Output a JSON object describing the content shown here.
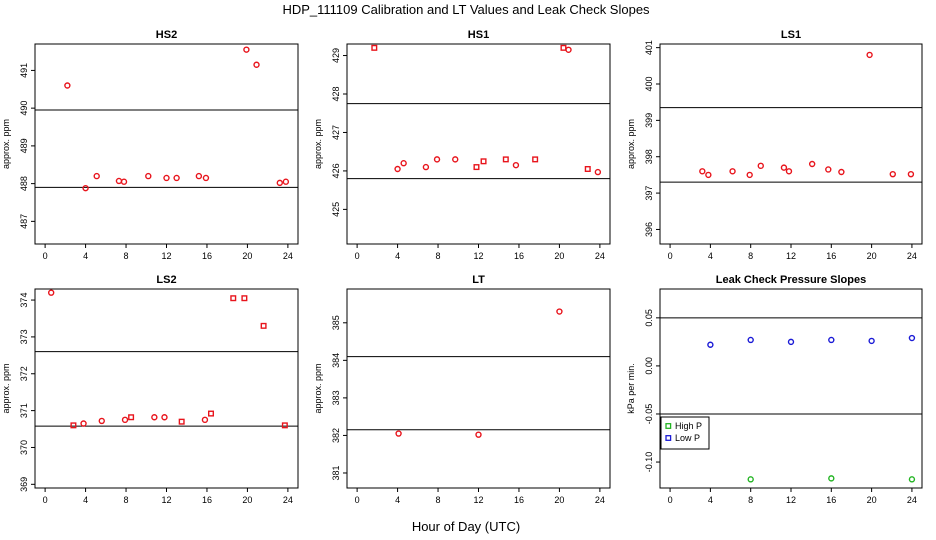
{
  "figure": {
    "title": "HDP_111109  Calibration and LT Values and Leak Check Slopes",
    "xlabel": "Hour of Day (UTC)"
  },
  "colors": {
    "red": "#e8141c",
    "blue": "#1a1ad6",
    "green": "#22b422"
  },
  "chart_data": [
    {
      "type": "scatter",
      "title": "HS2",
      "xlabel": "",
      "ylabel": "approx. ppm",
      "xlim": [
        -1,
        25
      ],
      "ylim": [
        486.4,
        491.7
      ],
      "xticks": [
        0,
        4,
        8,
        12,
        16,
        20,
        24
      ],
      "xtick_labels": [
        "0",
        "4",
        "8",
        "12",
        "16",
        "20",
        "24"
      ],
      "yticks": [
        487,
        488,
        489,
        490,
        491
      ],
      "ytick_labels": [
        "487",
        "488",
        "489",
        "490",
        "491"
      ],
      "hlines": [
        489.95,
        487.9
      ],
      "series": [
        {
          "marker": "circle",
          "color": "red",
          "x": [
            2.2,
            4,
            5.1,
            7.3,
            7.8,
            10.2,
            12,
            13,
            15.2,
            15.9,
            19.9,
            20.9,
            23.2,
            23.8
          ],
          "y": [
            490.6,
            487.88,
            488.2,
            488.07,
            488.05,
            488.2,
            488.15,
            488.15,
            488.2,
            488.15,
            491.55,
            491.15,
            488.02,
            488.05
          ]
        }
      ]
    },
    {
      "type": "scatter",
      "title": "HS1",
      "xlabel": "",
      "ylabel": "approx. ppm",
      "xlim": [
        -1,
        25
      ],
      "ylim": [
        424.1,
        429.3
      ],
      "xticks": [
        0,
        4,
        8,
        12,
        16,
        20,
        24
      ],
      "xtick_labels": [
        "0",
        "4",
        "8",
        "12",
        "16",
        "20",
        "24"
      ],
      "yticks": [
        425,
        426,
        427,
        428,
        429
      ],
      "ytick_labels": [
        "425",
        "426",
        "427",
        "428",
        "429"
      ],
      "hlines": [
        427.75,
        425.8
      ],
      "series": [
        {
          "marker": "circle",
          "color": "red",
          "x": [
            4,
            4.6,
            6.8,
            7.9,
            9.7,
            15.7,
            20.9,
            23.8
          ],
          "y": [
            426.05,
            426.2,
            426.1,
            426.3,
            426.3,
            426.15,
            429.15,
            425.97
          ]
        },
        {
          "marker": "square",
          "color": "red",
          "x": [
            1.7,
            11.8,
            12.5,
            14.7,
            17.6,
            20.4,
            22.8
          ],
          "y": [
            429.2,
            426.1,
            426.25,
            426.3,
            426.3,
            429.2,
            426.05
          ]
        }
      ]
    },
    {
      "type": "scatter",
      "title": "LS1",
      "xlabel": "",
      "ylabel": "approx. ppm",
      "xlim": [
        -1,
        25
      ],
      "ylim": [
        395.6,
        401.1
      ],
      "xticks": [
        0,
        4,
        8,
        12,
        16,
        20,
        24
      ],
      "xtick_labels": [
        "0",
        "4",
        "8",
        "12",
        "16",
        "20",
        "24"
      ],
      "yticks": [
        396,
        397,
        398,
        399,
        400,
        401
      ],
      "ytick_labels": [
        "396",
        "397",
        "398",
        "399",
        "400",
        "401"
      ],
      "hlines": [
        399.35,
        397.3
      ],
      "series": [
        {
          "marker": "circle",
          "color": "red",
          "x": [
            3.2,
            3.8,
            6.2,
            7.9,
            9,
            11.3,
            11.8,
            14.1,
            15.7,
            17,
            19.8,
            22.1,
            23.9
          ],
          "y": [
            397.6,
            397.5,
            397.6,
            397.5,
            397.75,
            397.7,
            397.6,
            397.8,
            397.65,
            397.58,
            400.8,
            397.52,
            397.52
          ]
        }
      ]
    },
    {
      "type": "scatter",
      "title": "LS2",
      "xlabel": "",
      "ylabel": "approx. ppm",
      "xlim": [
        -1,
        25
      ],
      "ylim": [
        368.9,
        374.3
      ],
      "xticks": [
        0,
        4,
        8,
        12,
        16,
        20,
        24
      ],
      "xtick_labels": [
        "0",
        "4",
        "8",
        "12",
        "16",
        "20",
        "24"
      ],
      "yticks": [
        369,
        370,
        371,
        372,
        373,
        374
      ],
      "ytick_labels": [
        "369",
        "370",
        "371",
        "372",
        "373",
        "374"
      ],
      "hlines": [
        372.6,
        370.58
      ],
      "series": [
        {
          "marker": "circle",
          "color": "red",
          "x": [
            0.6,
            3.8,
            5.6,
            7.9,
            10.8,
            11.8,
            15.8
          ],
          "y": [
            374.2,
            370.65,
            370.72,
            370.75,
            370.82,
            370.82,
            370.75
          ]
        },
        {
          "marker": "square",
          "color": "red",
          "x": [
            2.8,
            8.5,
            13.5,
            16.4,
            18.6,
            19.7,
            21.6,
            23.7
          ],
          "y": [
            370.6,
            370.82,
            370.7,
            370.92,
            374.05,
            374.05,
            373.3,
            370.6
          ]
        }
      ]
    },
    {
      "type": "scatter",
      "title": "LT",
      "xlabel": "",
      "ylabel": "approx. ppm",
      "xlim": [
        -1,
        25
      ],
      "ylim": [
        380.6,
        385.9
      ],
      "xticks": [
        0,
        4,
        8,
        12,
        16,
        20,
        24
      ],
      "xtick_labels": [
        "0",
        "4",
        "8",
        "12",
        "16",
        "20",
        "24"
      ],
      "yticks": [
        381,
        382,
        383,
        384,
        385
      ],
      "ytick_labels": [
        "381",
        "382",
        "383",
        "384",
        "385"
      ],
      "hlines": [
        384.1,
        382.15
      ],
      "series": [
        {
          "marker": "circle",
          "color": "red",
          "x": [
            4.1,
            12,
            20
          ],
          "y": [
            382.05,
            382.02,
            385.3
          ]
        }
      ]
    },
    {
      "type": "scatter",
      "title": "Leak Check Pressure Slopes",
      "xlabel": "",
      "ylabel": "kPa per min.",
      "xlim": [
        -1,
        25
      ],
      "ylim": [
        -0.127,
        0.08
      ],
      "xticks": [
        0,
        4,
        8,
        12,
        16,
        20,
        24
      ],
      "xtick_labels": [
        "0",
        "4",
        "8",
        "12",
        "16",
        "20",
        "24"
      ],
      "yticks": [
        -0.1,
        -0.05,
        0.0,
        0.05
      ],
      "ytick_labels": [
        "-0.10",
        "-0.05",
        "0.00",
        "0.05"
      ],
      "hlines": [
        0.05,
        -0.05
      ],
      "legend": {
        "position": "left",
        "entries": [
          {
            "label": "High P",
            "color": "green"
          },
          {
            "label": "Low P",
            "color": "blue"
          }
        ]
      },
      "series": [
        {
          "name": "High P",
          "marker": "circle",
          "color": "green",
          "x": [
            8,
            16,
            24
          ],
          "y": [
            -0.118,
            -0.117,
            -0.118
          ]
        },
        {
          "name": "Low P",
          "marker": "circle",
          "color": "blue",
          "x": [
            4,
            8,
            12,
            16,
            20,
            24
          ],
          "y": [
            0.022,
            0.027,
            0.025,
            0.027,
            0.026,
            0.029
          ]
        }
      ]
    }
  ]
}
